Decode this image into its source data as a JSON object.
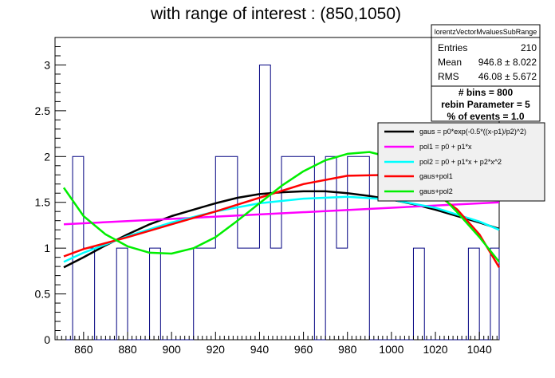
{
  "chart_data": {
    "type": "histogram",
    "title": "with range of interest : (850,1050)",
    "xlabel": "",
    "ylabel": "",
    "xlim": [
      847,
      1049
    ],
    "ylim": [
      0,
      3.3
    ],
    "x_ticks": [
      860,
      880,
      900,
      920,
      940,
      960,
      980,
      1000,
      1020,
      1040
    ],
    "y_ticks": [
      0,
      0.5,
      1,
      1.5,
      2,
      2.5,
      3
    ],
    "y_tick_labels": [
      "0",
      "0.5",
      "1",
      "1.5",
      "2",
      "2.5",
      "3"
    ],
    "histogram": {
      "color": "#000080",
      "bins": [
        {
          "x0": 850,
          "x1": 855,
          "value": 0
        },
        {
          "x0": 855,
          "x1": 860,
          "value": 2
        },
        {
          "x0": 860,
          "x1": 865,
          "value": 1
        },
        {
          "x0": 865,
          "x1": 875,
          "value": 0
        },
        {
          "x0": 875,
          "x1": 880,
          "value": 1
        },
        {
          "x0": 880,
          "x1": 890,
          "value": 0
        },
        {
          "x0": 890,
          "x1": 895,
          "value": 1
        },
        {
          "x0": 895,
          "x1": 910,
          "value": 0
        },
        {
          "x0": 910,
          "x1": 920,
          "value": 1
        },
        {
          "x0": 920,
          "x1": 930,
          "value": 2
        },
        {
          "x0": 930,
          "x1": 940,
          "value": 1
        },
        {
          "x0": 940,
          "x1": 945,
          "value": 3
        },
        {
          "x0": 945,
          "x1": 950,
          "value": 1
        },
        {
          "x0": 950,
          "x1": 965,
          "value": 2
        },
        {
          "x0": 965,
          "x1": 970,
          "value": 0
        },
        {
          "x0": 970,
          "x1": 975,
          "value": 2
        },
        {
          "x0": 975,
          "x1": 980,
          "value": 1
        },
        {
          "x0": 980,
          "x1": 990,
          "value": 2
        },
        {
          "x0": 990,
          "x1": 1010,
          "value": 0
        },
        {
          "x0": 1010,
          "x1": 1015,
          "value": 1
        },
        {
          "x0": 1015,
          "x1": 1035,
          "value": 0
        },
        {
          "x0": 1035,
          "x1": 1040,
          "value": 1
        },
        {
          "x0": 1040,
          "x1": 1045,
          "value": 0
        },
        {
          "x0": 1045,
          "x1": 1049,
          "value": 1
        }
      ]
    },
    "stats_box": {
      "name": "lorentzVectorMvaluesSubRange",
      "rows": [
        {
          "label": "Entries",
          "value": "210"
        },
        {
          "label": "Mean",
          "value": "946.8 ±  8.022"
        },
        {
          "label": "RMS",
          "value": "46.08 ±  5.672"
        }
      ]
    },
    "info_box": {
      "lines": [
        "# bins = 800",
        "rebin Parameter = 5",
        "% of events = 1.0"
      ]
    },
    "legend_position": "top-right",
    "series": [
      {
        "name": "gaus = p0*exp(-0.5*((x-p1)/p2)^2)",
        "color": "#000000",
        "x": [
          851,
          860,
          870,
          880,
          890,
          900,
          910,
          920,
          930,
          940,
          950,
          960,
          970,
          980,
          990,
          1000,
          1010,
          1020,
          1030,
          1040,
          1049
        ],
        "y": [
          0.79,
          0.9,
          1.03,
          1.15,
          1.26,
          1.35,
          1.42,
          1.49,
          1.55,
          1.59,
          1.61,
          1.62,
          1.62,
          1.6,
          1.57,
          1.53,
          1.48,
          1.42,
          1.35,
          1.28,
          1.21
        ]
      },
      {
        "name": "pol1 = p0 + p1*x",
        "color": "#ff00ff",
        "x": [
          851,
          1049
        ],
        "y": [
          1.26,
          1.5
        ]
      },
      {
        "name": "pol2 = p0 + p1*x + p2*x^2",
        "color": "#00ffff",
        "x": [
          851,
          860,
          880,
          900,
          920,
          940,
          960,
          980,
          1000,
          1020,
          1040,
          1049
        ],
        "y": [
          0.85,
          0.95,
          1.13,
          1.28,
          1.4,
          1.49,
          1.54,
          1.56,
          1.53,
          1.44,
          1.29,
          1.2
        ]
      },
      {
        "name": "gaus+pol1",
        "color": "#ff0000",
        "x": [
          851,
          860,
          880,
          900,
          920,
          940,
          960,
          980,
          1000,
          1010,
          1020,
          1030,
          1040,
          1049
        ],
        "y": [
          0.91,
          0.99,
          1.12,
          1.26,
          1.4,
          1.55,
          1.7,
          1.79,
          1.8,
          1.73,
          1.6,
          1.42,
          1.15,
          0.79
        ]
      },
      {
        "name": "gaus+pol2",
        "color": "#00ee00",
        "x": [
          851,
          860,
          870,
          880,
          890,
          900,
          910,
          920,
          930,
          940,
          950,
          960,
          970,
          980,
          990,
          1000,
          1010,
          1020,
          1030,
          1040,
          1049
        ],
        "y": [
          1.66,
          1.35,
          1.15,
          1.02,
          0.95,
          0.94,
          1.0,
          1.12,
          1.3,
          1.49,
          1.68,
          1.84,
          1.96,
          2.03,
          2.05,
          1.99,
          1.85,
          1.64,
          1.39,
          1.12,
          0.85
        ]
      }
    ]
  }
}
